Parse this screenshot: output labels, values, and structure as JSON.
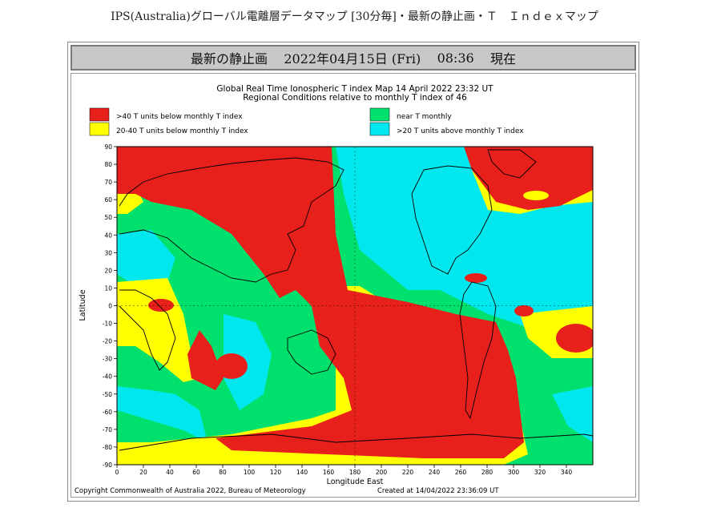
{
  "page": {
    "title": "IPS(Australia)グローバル電離層データマップ [30分毎]・最新の静止画・Ｔ　Ｉｎｄｅｘマップ"
  },
  "banner": {
    "label": "最新の静止画",
    "datetime": "2022年04月15日 (Fri)",
    "time": "08:36",
    "status": "現在"
  },
  "map": {
    "title_line1": "Global Real Time Ionospheric T index Map 14 April 2022 23:32 UT",
    "title_line2": "Regional Conditions relative to monthly T index of 46",
    "legend": [
      {
        "label": ">40 T units below monthly T index",
        "color": "#e8201c"
      },
      {
        "label": "20-40 T units below monthly T index",
        "color": "#ffff00"
      },
      {
        "label": "near T monthly",
        "color": "#00e06c"
      },
      {
        "label": ">20 T units above monthly T index",
        "color": "#00e8ee"
      }
    ],
    "y_axis_label": "Latitude",
    "x_axis_label": "Longitude East",
    "lat_ticks": [
      "90",
      "80",
      "70",
      "60",
      "50",
      "40",
      "30",
      "20",
      "10",
      "0",
      "-10",
      "-20",
      "-30",
      "-40",
      "-50",
      "-60",
      "-70",
      "-80",
      "-90"
    ],
    "lon_ticks": [
      "0",
      "20",
      "40",
      "60",
      "80",
      "100",
      "120",
      "140",
      "160",
      "180",
      "200",
      "220",
      "240",
      "260",
      "280",
      "300",
      "320",
      "340"
    ],
    "copyright": "Copyright Commonwealth of Australia 2022, Bureau of Meteorology",
    "created": "Created at 14/04/2022 23:36:09 UT"
  }
}
